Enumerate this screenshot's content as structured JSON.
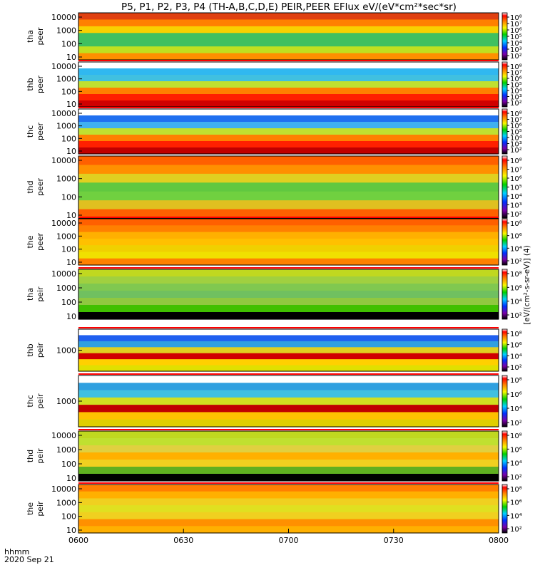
{
  "figure": {
    "title": "P5, P1, P2, P3, P4 (TH-A,B,C,D,E) PEIR,PEER EFlux eV/(eV*cm²*sec*sr)",
    "time_label": "hhmm",
    "date_label": "2020 Sep 21"
  },
  "chart_data": {
    "type": "heatmap",
    "x_ticks": [
      "0600",
      "0630",
      "0700",
      "0730",
      "0800"
    ],
    "colorbar_label": "[eV/(cm²-s-sr-eV)] (4)",
    "panels": [
      {
        "probe": "tha",
        "species": "peer",
        "y_ticks": [
          "10",
          "100",
          "1000",
          "10000"
        ],
        "cbar_ticks": [
          "10⁸",
          "10⁷",
          "10⁶",
          "10⁵",
          "10⁴",
          "10³",
          "10²"
        ],
        "status": "none"
      },
      {
        "probe": "thb",
        "species": "peer",
        "y_ticks": [
          "10",
          "100",
          "1000",
          "10000"
        ],
        "cbar_ticks": [
          "10⁸",
          "10⁷",
          "10⁶",
          "10⁵",
          "10⁴",
          "10³",
          "10²"
        ],
        "status": "full"
      },
      {
        "probe": "thc",
        "species": "peer",
        "y_ticks": [
          "10",
          "100",
          "1000",
          "10000"
        ],
        "cbar_ticks": [
          "10⁸",
          "10⁷",
          "10⁶",
          "10⁵",
          "10⁴",
          "10³",
          "10²"
        ],
        "status": "full"
      },
      {
        "probe": "thd",
        "species": "peer",
        "y_ticks": [
          "10",
          "100",
          "1000",
          "10000"
        ],
        "cbar_ticks": [
          "10⁸",
          "10⁷",
          "10⁶",
          "10⁵",
          "10⁴",
          "10³",
          "10²"
        ],
        "status": "none"
      },
      {
        "probe": "the",
        "species": "peer",
        "y_ticks": [
          "10",
          "100",
          "1000",
          "10000"
        ],
        "cbar_ticks": [
          "10⁸",
          "10⁶",
          "10⁴",
          "10²"
        ],
        "status": "full"
      },
      {
        "probe": "tha",
        "species": "peir",
        "y_ticks": [
          "10",
          "100",
          "1000",
          "10000"
        ],
        "cbar_ticks": [
          "10⁸",
          "10⁶",
          "10⁴",
          "10²"
        ],
        "status": "partial"
      },
      {
        "probe": "thb",
        "species": "peir",
        "y_ticks": [
          "1000"
        ],
        "cbar_ticks": [
          "10⁸",
          "10⁶",
          "10⁴",
          "10²"
        ],
        "status": "full"
      },
      {
        "probe": "thc",
        "species": "peir",
        "y_ticks": [
          "1000"
        ],
        "cbar_ticks": [
          "10⁸",
          "10⁶",
          "10⁴",
          "10²"
        ],
        "status": "mixed"
      },
      {
        "probe": "thd",
        "species": "peir",
        "y_ticks": [
          "10",
          "100",
          "1000",
          "10000"
        ],
        "cbar_ticks": [
          "10⁸",
          "10⁶",
          "10⁴",
          "10²"
        ],
        "status": "full"
      },
      {
        "probe": "the",
        "species": "peir",
        "y_ticks": [
          "10",
          "100",
          "1000",
          "10000"
        ],
        "cbar_ticks": [
          "10⁸",
          "10⁶",
          "10⁴",
          "10²"
        ],
        "status": "full"
      }
    ]
  }
}
